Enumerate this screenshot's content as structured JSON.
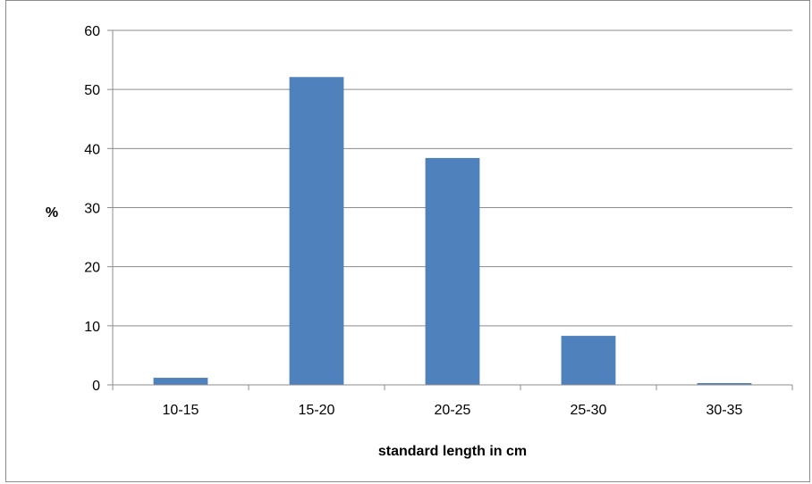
{
  "chart_data": {
    "type": "bar",
    "categories": [
      "10-15",
      "15-20",
      "20-25",
      "25-30",
      "30-35"
    ],
    "values": [
      1.2,
      52.1,
      38.4,
      8.3,
      0.3
    ],
    "title": "",
    "xlabel": "standard length in cm",
    "ylabel": "%",
    "ylim": [
      0,
      60
    ],
    "yticks": [
      0,
      10,
      20,
      30,
      40,
      50,
      60
    ],
    "grid": true,
    "legend": "none",
    "bar_color": "#4f81bd"
  }
}
